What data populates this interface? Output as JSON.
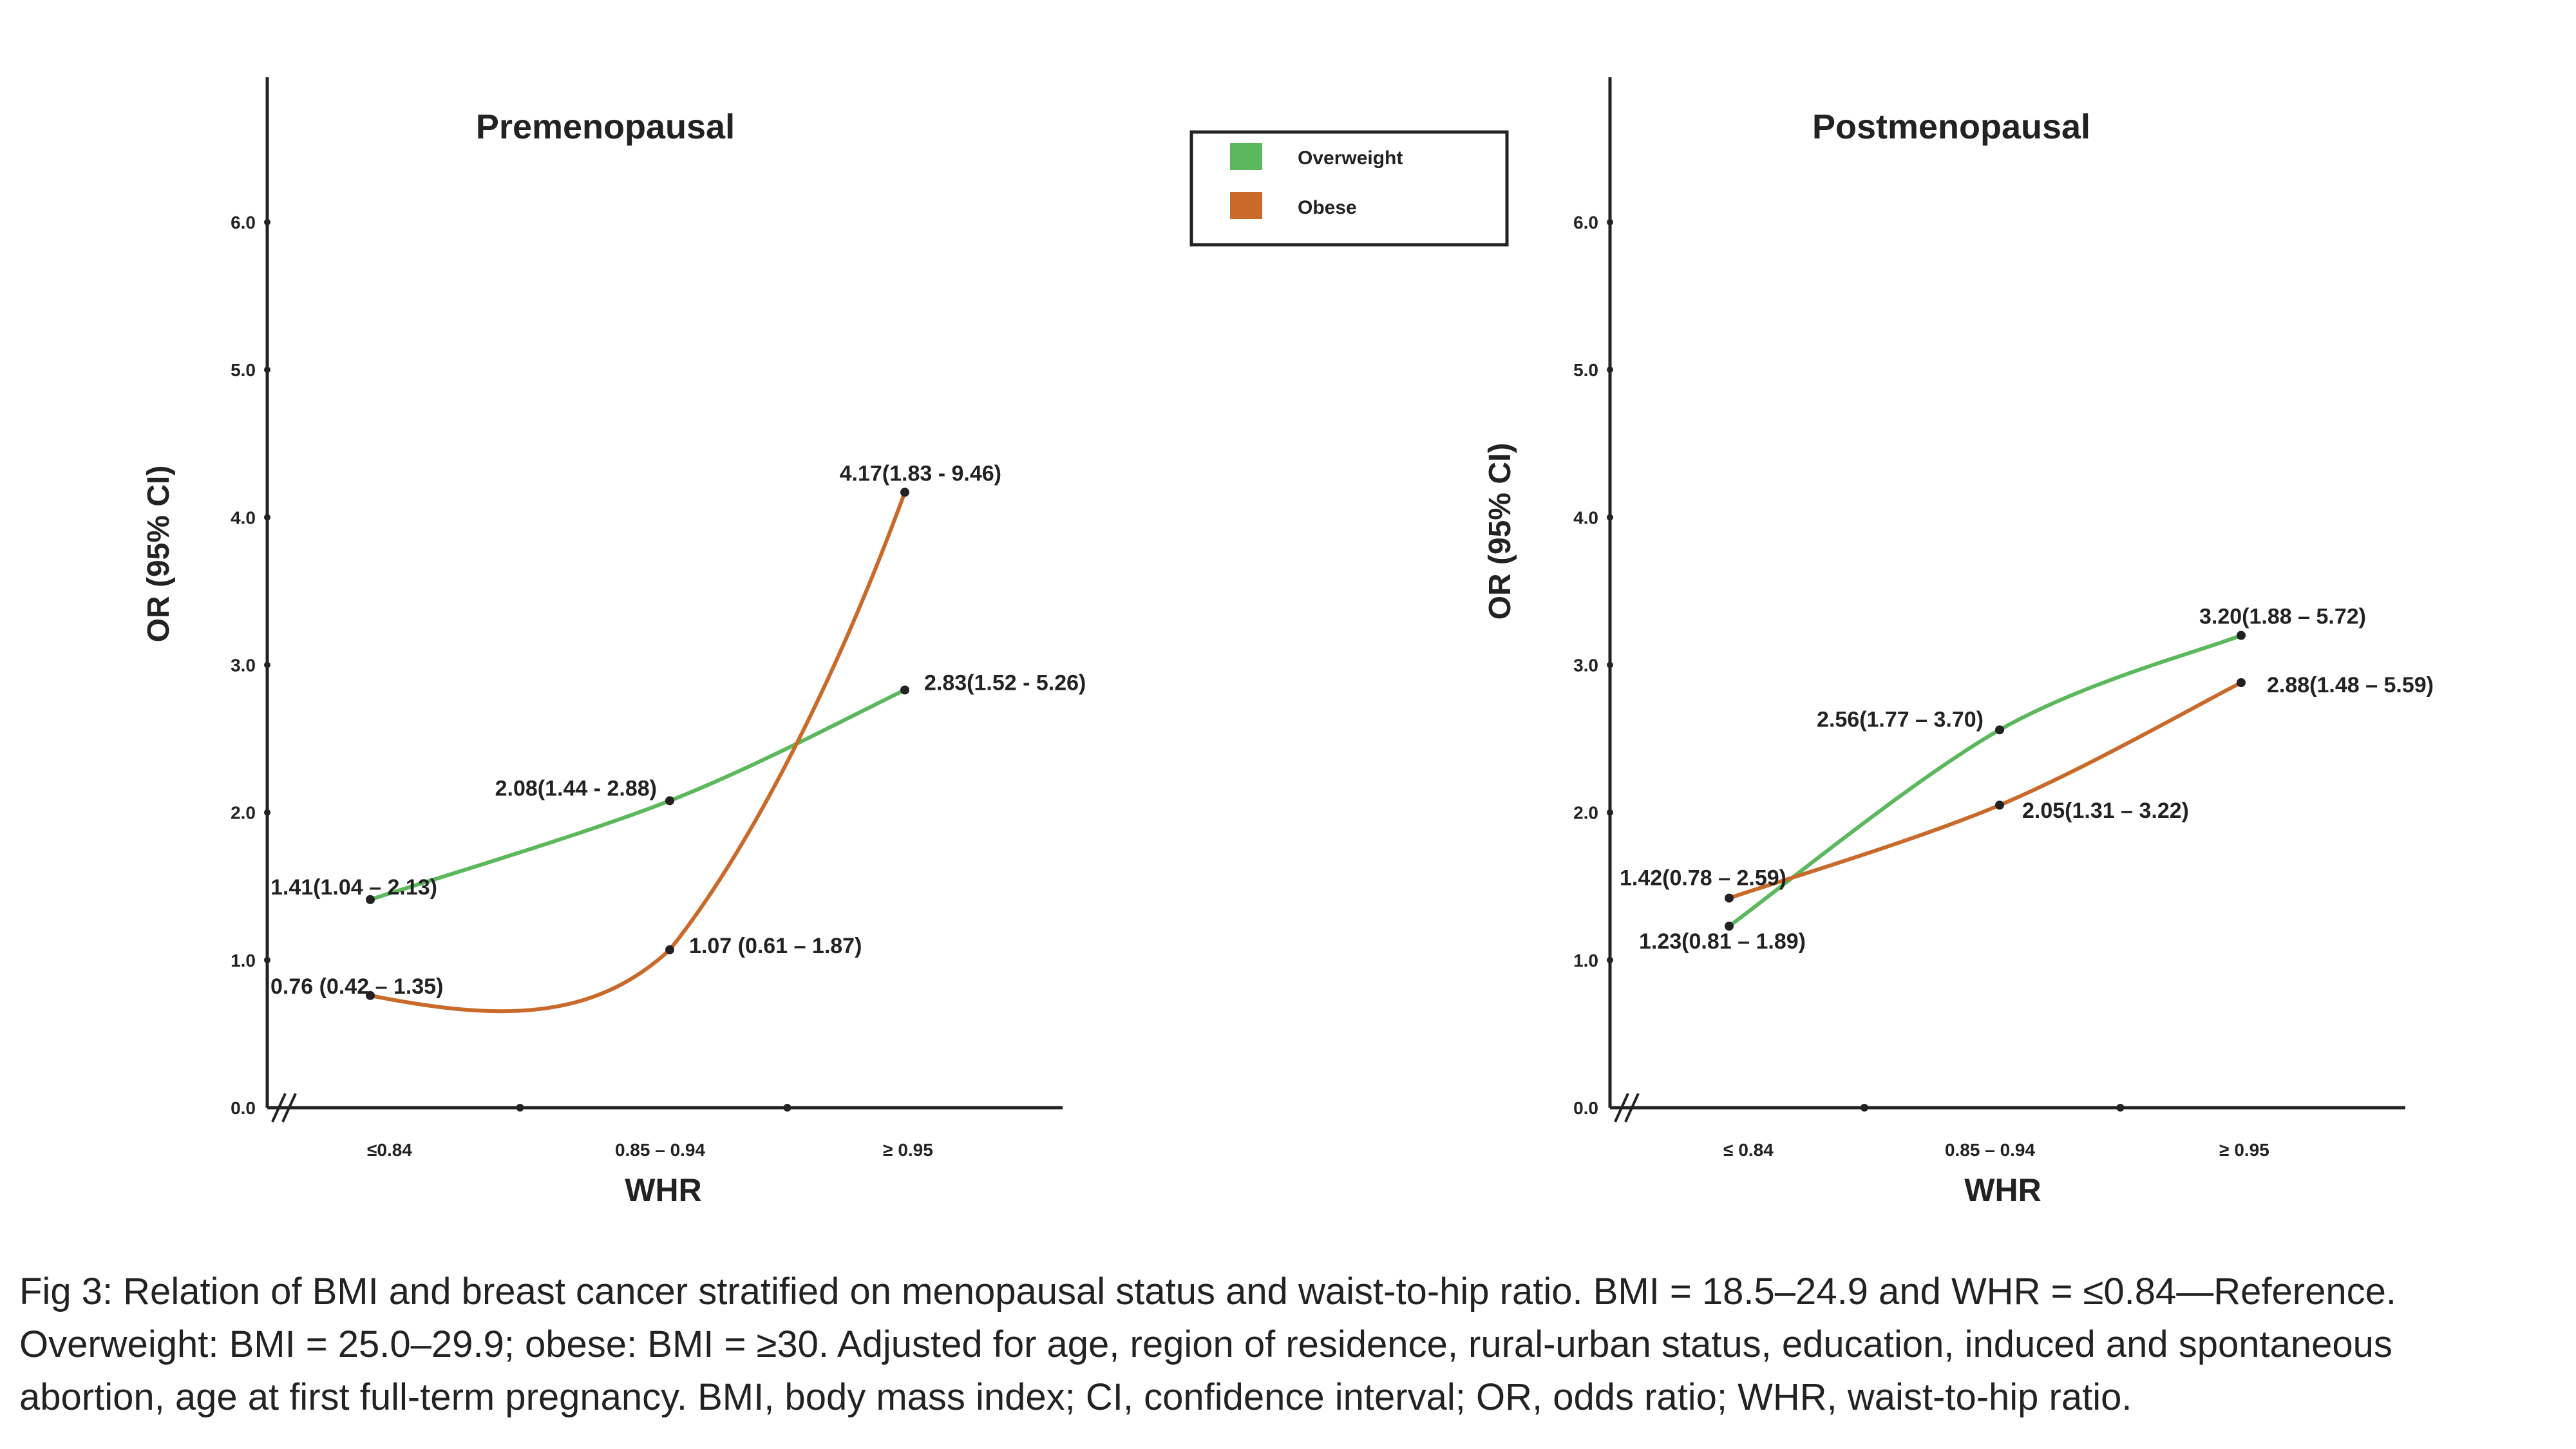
{
  "chart_data": [
    {
      "type": "line",
      "title": "Premenopausal",
      "xlabel": "WHR",
      "ylabel": "OR (95% CI)",
      "categories": [
        "≤0.84",
        "0.85 – 0.94",
        "≥ 0.95"
      ],
      "yticks": [
        "0.0",
        "1.0",
        "2.0",
        "3.0",
        "4.0",
        "5.0",
        "6.0"
      ],
      "ylim": [
        0,
        6.0
      ],
      "grid": false,
      "series": [
        {
          "name": "Overweight",
          "color": "#5cb85c",
          "values": [
            1.41,
            2.08,
            2.83
          ],
          "labels": [
            "1.41(1.04 – 2.13)",
            "2.08(1.44 - 2.88)",
            "2.83(1.52 - 5.26)"
          ]
        },
        {
          "name": "Obese",
          "color": "#c96a2b",
          "values": [
            0.76,
            1.07,
            4.17
          ],
          "labels": [
            "0.76 (0.42 – 1.35)",
            "1.07 (0.61 – 1.87)",
            "4.17(1.83 - 9.46)"
          ]
        }
      ]
    },
    {
      "type": "line",
      "title": "Postmenopausal",
      "xlabel": "WHR",
      "ylabel": "OR (95% CI)",
      "categories": [
        "≤ 0.84",
        "0.85 – 0.94",
        "≥ 0.95"
      ],
      "yticks": [
        "0.0",
        "1.0",
        "2.0",
        "3.0",
        "4.0",
        "5.0",
        "6.0"
      ],
      "ylim": [
        0,
        6.0
      ],
      "grid": false,
      "series": [
        {
          "name": "Overweight",
          "color": "#5cb85c",
          "values": [
            1.23,
            2.56,
            3.2
          ],
          "labels": [
            "1.23(0.81 – 1.89)",
            "2.56(1.77 – 3.70)",
            "3.20(1.88 – 5.72)"
          ]
        },
        {
          "name": "Obese",
          "color": "#c96a2b",
          "values": [
            1.42,
            2.05,
            2.88
          ],
          "labels": [
            "1.42(0.78 – 2.59)",
            "2.05(1.31 – 3.22)",
            "2.88(1.48 – 5.59)"
          ]
        }
      ]
    }
  ],
  "legend": {
    "items": [
      {
        "label": "Overweight",
        "color": "#5cb85c"
      },
      {
        "label": "Obese",
        "color": "#c96a2b"
      }
    ]
  },
  "caption": {
    "line1": "Fig 3: Relation of BMI and breast cancer stratified on menopausal status and waist-to-hip ratio. BMI = 18.5–24.9 and WHR = ≤0.84—Reference.",
    "line2": "Overweight: BMI = 25.0–29.9; obese: BMI = ≥30. Adjusted for age, region of residence, rural-urban status, education, induced and spontaneous",
    "line3": "abortion, age at first full-term pregnancy. BMI, body mass index; CI, confidence interval; OR, odds ratio; WHR, waist-to-hip ratio."
  }
}
